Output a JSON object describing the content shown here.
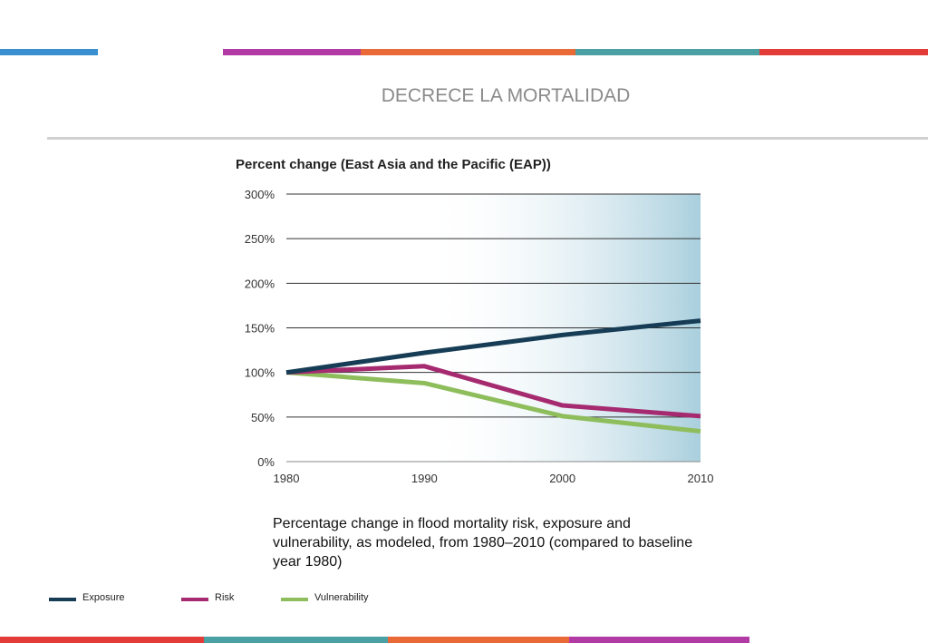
{
  "slide": {
    "title": "DECRECE LA MORTALIDAD",
    "caption": "Percentage change in flood mortality risk, exposure and vulnerability, as modeled, from 1980–2010 (compared to baseline year 1980)"
  },
  "colors": {
    "top_bar": [
      "#3a8fd0",
      "#b23aa5",
      "#e96a36",
      "#4aa0a3",
      "#e33b38"
    ],
    "bottom_bar": [
      "#e33b38",
      "#4aa0a3",
      "#e96a36",
      "#b23aa5"
    ],
    "exposure": "#163d55",
    "risk": "#a52a6f",
    "vulnerability": "#8ebd5c",
    "highlight_gradient_end": "#a9cfdd"
  },
  "chart_data": {
    "type": "line",
    "title": "Percent change (East Asia and the Pacific (EAP))",
    "x": [
      1980,
      1990,
      2000,
      2010
    ],
    "x_ticks": [
      "1980",
      "1990",
      "2000",
      "2010"
    ],
    "y_ticks": [
      "0%",
      "50%",
      "100%",
      "150%",
      "200%",
      "250%",
      "300%"
    ],
    "xlim": [
      1980,
      2010
    ],
    "ylim": [
      0,
      300
    ],
    "grid": true,
    "legend_position": "bottom-left",
    "series": [
      {
        "name": "Exposure",
        "values": [
          100,
          122,
          142,
          158
        ]
      },
      {
        "name": "Risk",
        "values": [
          100,
          107,
          63,
          51
        ]
      },
      {
        "name": "Vulnerability",
        "values": [
          100,
          88,
          51,
          34
        ]
      }
    ]
  }
}
